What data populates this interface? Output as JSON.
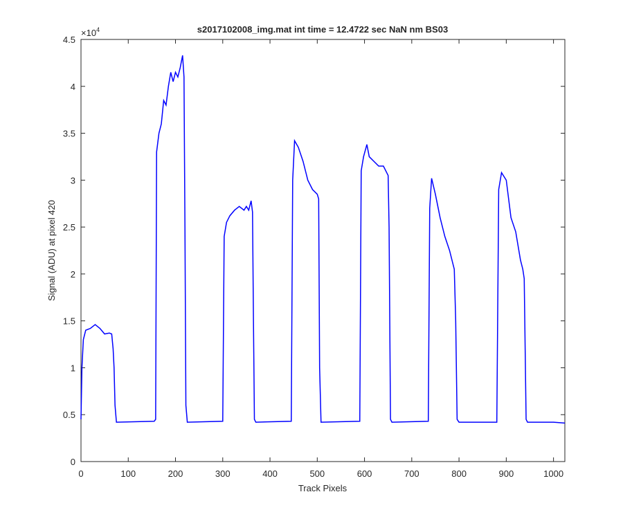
{
  "chart_data": {
    "type": "line",
    "title": "s2017102008_img.mat int time = 12.4722 sec  NaN nm BS03",
    "x_label": "Track Pixels",
    "y_label": "Signal (ADU) at pixel 420",
    "y_multiplier": {
      "base": "×10",
      "exponent": "4"
    },
    "xlim": [
      0,
      1024
    ],
    "ylim": [
      0,
      45000
    ],
    "xticks": [
      0,
      100,
      200,
      300,
      400,
      500,
      600,
      700,
      800,
      900,
      1000
    ],
    "yticks": [
      0,
      {
        "value": 5000,
        "label": "0.5"
      },
      {
        "value": 10000,
        "label": "1"
      },
      {
        "value": 15000,
        "label": "1.5"
      },
      {
        "value": 20000,
        "label": "2"
      },
      {
        "value": 25000,
        "label": "2.5"
      },
      {
        "value": 30000,
        "label": "3"
      },
      {
        "value": 35000,
        "label": "3.5"
      },
      {
        "value": 40000,
        "label": "4"
      },
      {
        "value": 45000,
        "label": "4.5"
      }
    ],
    "series": [
      {
        "color": "#0000ff",
        "x": [
          0,
          2,
          5,
          10,
          20,
          30,
          40,
          50,
          60,
          65,
          68,
          70,
          72,
          75,
          155,
          158,
          160,
          165,
          170,
          175,
          180,
          185,
          190,
          195,
          200,
          205,
          210,
          215,
          218,
          220,
          222,
          225,
          300,
          303,
          308,
          315,
          325,
          335,
          345,
          350,
          355,
          360,
          363,
          365,
          367,
          370,
          445,
          448,
          452,
          460,
          470,
          480,
          490,
          500,
          503,
          505,
          508,
          590,
          593,
          598,
          605,
          610,
          620,
          630,
          640,
          650,
          652,
          655,
          658,
          735,
          738,
          742,
          750,
          760,
          770,
          780,
          790,
          793,
          796,
          800,
          880,
          884,
          890,
          900,
          910,
          920,
          930,
          935,
          938,
          940,
          942,
          945,
          1000,
          1024
        ],
        "values": [
          4500,
          10000,
          13000,
          14000,
          14200,
          14600,
          14200,
          13600,
          13700,
          13600,
          12000,
          10000,
          6000,
          4200,
          4300,
          4500,
          33000,
          35000,
          36000,
          38500,
          38000,
          40000,
          41500,
          40500,
          41500,
          41000,
          42000,
          43300,
          41000,
          25000,
          6000,
          4200,
          4300,
          24000,
          25500,
          26200,
          26800,
          27200,
          26800,
          27200,
          26800,
          27800,
          26600,
          15000,
          4500,
          4200,
          4300,
          30000,
          34200,
          33500,
          32000,
          30000,
          29000,
          28500,
          28000,
          10000,
          4200,
          4300,
          31000,
          32500,
          33800,
          32500,
          32000,
          31500,
          31500,
          30500,
          25000,
          4500,
          4200,
          4300,
          27000,
          30200,
          28500,
          26000,
          24000,
          22500,
          20500,
          15000,
          4500,
          4200,
          4200,
          29000,
          30800,
          30000,
          26000,
          24500,
          21500,
          20500,
          19500,
          12000,
          4500,
          4200,
          4200,
          4100
        ]
      }
    ]
  }
}
